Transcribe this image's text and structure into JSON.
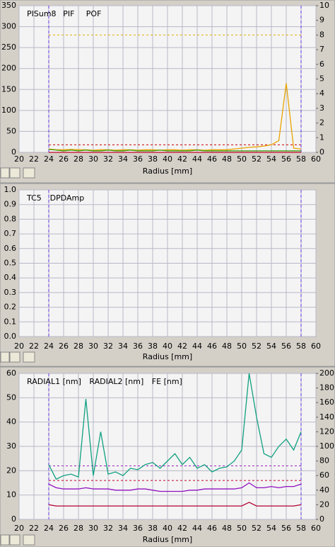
{
  "chart_data": [
    {
      "type": "line",
      "xlabel": "Radius [mm]",
      "x": [
        24,
        25,
        26,
        27,
        28,
        29,
        30,
        31,
        32,
        33,
        34,
        35,
        36,
        37,
        38,
        39,
        40,
        41,
        42,
        43,
        44,
        45,
        46,
        47,
        48,
        49,
        50,
        51,
        52,
        53,
        54,
        55,
        56,
        57,
        58
      ],
      "series": [
        {
          "name": "PISum8",
          "color": "#e8a400",
          "values": [
            8,
            6,
            6,
            7,
            6,
            6,
            5,
            6,
            6,
            5,
            6,
            6,
            5,
            6,
            6,
            5,
            6,
            6,
            5,
            6,
            6,
            5,
            6,
            6,
            6,
            8,
            10,
            12,
            13,
            15,
            18,
            28,
            165,
            10,
            8
          ]
        },
        {
          "name": "PIF",
          "color": "#3c9a10",
          "axis": "y2",
          "values": [
            0.2,
            0.15,
            0.1,
            0.15,
            0.1,
            0.15,
            0.1,
            0.1,
            0.15,
            0.1,
            0.1,
            0.15,
            0.1,
            0.1,
            0.1,
            0.15,
            0.1,
            0.1,
            0.1,
            0.1,
            0.15,
            0.1,
            0.1,
            0.1,
            0.1,
            0.1,
            0.1,
            0.1,
            0.1,
            0.1,
            0.1,
            0.1,
            0.1,
            0.1,
            0.1
          ]
        },
        {
          "name": "POF",
          "color": "#c00020",
          "axis": "y2",
          "values": [
            0,
            0,
            0,
            0,
            0,
            0,
            0,
            0,
            0,
            0,
            0,
            0,
            0,
            0,
            0,
            0,
            0,
            0,
            0,
            0,
            0,
            0,
            0,
            0,
            0,
            0,
            0,
            0,
            0,
            0,
            0,
            0,
            0,
            0,
            0
          ]
        }
      ],
      "xlim": [
        20,
        60
      ],
      "xticks": [
        20,
        22,
        24,
        26,
        28,
        30,
        32,
        34,
        36,
        38,
        40,
        42,
        44,
        46,
        48,
        50,
        52,
        54,
        56,
        58,
        60
      ],
      "ylim": [
        0,
        350
      ],
      "yticks": [
        0,
        50,
        100,
        150,
        200,
        250,
        300,
        350
      ],
      "y2lim": [
        0,
        10
      ],
      "y2ticks": [
        0,
        1,
        2,
        3,
        4,
        5,
        6,
        7,
        8,
        9,
        10
      ],
      "grid": true,
      "xmarkers": [
        24,
        58
      ],
      "xmarker_color": "#6030e0",
      "limits": [
        {
          "value": 280,
          "color": "#e0b000"
        },
        {
          "value": 18,
          "color": "#cc0000"
        }
      ]
    },
    {
      "type": "line",
      "xlabel": "Radius [mm]",
      "series": [
        {
          "name": "TC5",
          "color": "#206020"
        },
        {
          "name": "DPDAmp",
          "color": "#c00020"
        }
      ],
      "xlim": [
        20,
        60
      ],
      "xticks": [
        20,
        22,
        24,
        26,
        28,
        30,
        32,
        34,
        36,
        38,
        40,
        42,
        44,
        46,
        48,
        50,
        52,
        54,
        56,
        58,
        60
      ],
      "ylim": [
        0,
        1
      ],
      "yticks": [
        {
          "value": 0,
          "label": "0.0"
        },
        0.1,
        0.2,
        0.3,
        0.4,
        0.5,
        0.6,
        0.7,
        0.8,
        0.9,
        {
          "value": 1,
          "label": "1.0"
        }
      ],
      "grid": true,
      "xmarkers": [
        24,
        58
      ],
      "xmarker_color": "#6030e0"
    },
    {
      "type": "line",
      "xlabel": "Radius [mm]",
      "x": [
        24,
        25,
        26,
        27,
        28,
        29,
        30,
        31,
        32,
        33,
        34,
        35,
        36,
        37,
        38,
        39,
        40,
        41,
        42,
        43,
        44,
        45,
        46,
        47,
        48,
        49,
        50,
        51,
        52,
        53,
        54,
        55,
        56,
        57,
        58
      ],
      "series": [
        {
          "name": "RADIAL1 [nm]",
          "color": "#9010c0",
          "values": [
            14.5,
            13,
            12.5,
            12.5,
            12.5,
            13,
            12.5,
            12.5,
            12.5,
            12,
            12,
            12,
            12.5,
            12.5,
            12,
            11.5,
            11.5,
            11.5,
            11.5,
            12,
            12,
            12.5,
            12.5,
            12.5,
            12.5,
            12.5,
            13,
            15,
            13,
            13,
            13.5,
            13,
            13.5,
            13.5,
            14.5
          ]
        },
        {
          "name": "RADIAL2 [nm]",
          "color": "#b00030",
          "values": [
            6,
            5.5,
            5.5,
            5.5,
            5.5,
            5.5,
            5.5,
            5.5,
            5.5,
            5.5,
            5.5,
            5.5,
            5.5,
            5.5,
            5.5,
            5.5,
            5.5,
            5.5,
            5.5,
            5.5,
            5.5,
            5.5,
            5.5,
            5.5,
            5.5,
            5.5,
            5.5,
            7,
            5.5,
            5.5,
            5.5,
            5.5,
            5.5,
            5.5,
            6
          ]
        },
        {
          "name": "FE [nm]",
          "color": "#10a080",
          "axis": "y2",
          "values": [
            75,
            55,
            60,
            62,
            58,
            165,
            60,
            120,
            62,
            65,
            60,
            70,
            68,
            75,
            78,
            70,
            80,
            90,
            75,
            85,
            70,
            75,
            65,
            70,
            72,
            80,
            95,
            200,
            140,
            90,
            85,
            100,
            110,
            95,
            120
          ]
        }
      ],
      "xlim": [
        20,
        60
      ],
      "xticks": [
        20,
        22,
        24,
        26,
        28,
        30,
        32,
        34,
        36,
        38,
        40,
        42,
        44,
        46,
        48,
        50,
        52,
        54,
        56,
        58,
        60
      ],
      "ylim": [
        0,
        60
      ],
      "yticks": [
        0,
        10,
        20,
        30,
        40,
        50,
        60
      ],
      "y2lim": [
        0,
        200
      ],
      "y2ticks": [
        0,
        20,
        40,
        60,
        80,
        100,
        120,
        140,
        160,
        180,
        200
      ],
      "grid": true,
      "xmarkers": [
        24,
        58
      ],
      "xmarker_color": "#6030e0",
      "limits": [
        {
          "value": 22,
          "color": "#a020c0"
        },
        {
          "value": 16,
          "color": "#c00030"
        }
      ]
    }
  ]
}
